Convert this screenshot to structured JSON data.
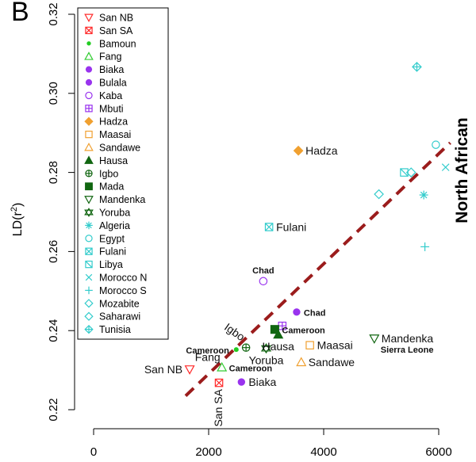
{
  "panel_label": "B",
  "chart_data": {
    "type": "scatter",
    "title": "",
    "xlabel": "",
    "ylabel": "LD(r²)",
    "ylabel_main": "LD(r",
    "ylabel_sup": "2",
    "ylabel_end": ")",
    "xlim": [
      0,
      6200
    ],
    "ylim": [
      0.22,
      0.32
    ],
    "xticks": [
      0,
      2000,
      4000,
      6000
    ],
    "yticks": [
      0.22,
      0.24,
      0.26,
      0.28,
      0.3,
      0.32
    ],
    "xtick_labels": [
      "0",
      "2000",
      "4000",
      "6000"
    ],
    "ytick_labels": [
      "0.22",
      "0.24",
      "0.26",
      "0.28",
      "0.30",
      "0.32"
    ],
    "grid": false,
    "legend_position": "top-left",
    "region_label": "North African",
    "trend_line": {
      "x": [
        1600,
        6200
      ],
      "y": [
        0.2235,
        0.2875
      ],
      "color": "#9b1c1c",
      "style": "dashed"
    },
    "series": [
      {
        "name": "San NB",
        "marker": "triangle-down-open",
        "color": "#ff2a2a",
        "points": [
          [
            1670,
            0.2302
          ]
        ],
        "labels": [
          {
            "text": "San NB",
            "bold": false,
            "pos": "left"
          }
        ]
      },
      {
        "name": "San SA",
        "marker": "square-x",
        "color": "#ff2a2a",
        "points": [
          [
            2180,
            0.2268
          ]
        ],
        "labels": [
          {
            "text": "San SA",
            "bold": false,
            "pos": "below-rotated"
          }
        ]
      },
      {
        "name": "Bamoun",
        "marker": "dot-small",
        "color": "#22cc22",
        "points": [
          [
            2480,
            0.2352
          ]
        ],
        "labels": [
          {
            "text": "Cameroon",
            "bold": true,
            "pos": "left"
          }
        ]
      },
      {
        "name": "Fang",
        "marker": "triangle-up-open",
        "color": "#33cc33",
        "points": [
          [
            2230,
            0.2307
          ]
        ],
        "labels": [
          {
            "text": "Fang",
            "bold": false,
            "pos": "above-left"
          },
          {
            "text": "Cameroon",
            "bold": true,
            "pos": "right"
          }
        ]
      },
      {
        "name": "Biaka",
        "marker": "dot",
        "color": "#9933ee",
        "points": [
          [
            2570,
            0.227
          ]
        ],
        "labels": [
          {
            "text": "Biaka",
            "bold": false,
            "pos": "right"
          }
        ]
      },
      {
        "name": "Bulala",
        "marker": "dot",
        "color": "#9933ee",
        "points": [
          [
            3530,
            0.2447
          ]
        ],
        "labels": [
          {
            "text": "Chad",
            "bold": true,
            "pos": "right"
          }
        ]
      },
      {
        "name": "Kaba",
        "marker": "circle-open",
        "color": "#9933ee",
        "points": [
          [
            2950,
            0.2525
          ]
        ],
        "labels": [
          {
            "text": "Chad",
            "bold": true,
            "pos": "above"
          }
        ]
      },
      {
        "name": "Mbuti",
        "marker": "square-plus",
        "color": "#9933ee",
        "points": [
          [
            3280,
            0.2412
          ]
        ],
        "labels": []
      },
      {
        "name": "Hadza",
        "marker": "diamond-filled",
        "color": "#f0a030",
        "points": [
          [
            3560,
            0.2855
          ]
        ],
        "labels": [
          {
            "text": "Hadza",
            "bold": false,
            "pos": "right"
          }
        ]
      },
      {
        "name": "Maasai",
        "marker": "square-open",
        "color": "#f0a030",
        "points": [
          [
            3760,
            0.2363
          ]
        ],
        "labels": [
          {
            "text": "Maasai",
            "bold": false,
            "pos": "right"
          }
        ]
      },
      {
        "name": "Sandawe",
        "marker": "triangle-up-open",
        "color": "#f0a030",
        "points": [
          [
            3610,
            0.232
          ]
        ],
        "labels": [
          {
            "text": "Sandawe",
            "bold": false,
            "pos": "right"
          }
        ]
      },
      {
        "name": "Hausa",
        "marker": "triangle-up-filled",
        "color": "#116611",
        "points": [
          [
            3210,
            0.239
          ]
        ],
        "labels": [
          {
            "text": "Hausa",
            "bold": false,
            "pos": "below"
          }
        ]
      },
      {
        "name": "Igbo",
        "marker": "circle-plus",
        "color": "#116611",
        "points": [
          [
            2650,
            0.2357
          ]
        ],
        "labels": [
          {
            "text": "Igbo",
            "bold": false,
            "pos": "above-left-rotated"
          }
        ]
      },
      {
        "name": "Mada",
        "marker": "square-filled",
        "color": "#116611",
        "points": [
          [
            3150,
            0.2403
          ]
        ],
        "labels": [
          {
            "text": "Cameroon",
            "bold": true,
            "pos": "right"
          }
        ]
      },
      {
        "name": "Mandenka",
        "marker": "triangle-down-open",
        "color": "#116611",
        "points": [
          [
            4880,
            0.238
          ]
        ],
        "labels": [
          {
            "text": "Mandenka",
            "bold": false,
            "pos": "right"
          },
          {
            "text": "Sierra Leone",
            "bold": true,
            "pos": "below-right"
          }
        ]
      },
      {
        "name": "Yoruba",
        "marker": "star-of-david",
        "color": "#116611",
        "points": [
          [
            3000,
            0.2355
          ]
        ],
        "labels": [
          {
            "text": "Yoruba",
            "bold": false,
            "pos": "below"
          }
        ]
      },
      {
        "name": "Algeria",
        "marker": "asterisk",
        "color": "#33cccc",
        "points": [
          [
            5740,
            0.2743
          ]
        ],
        "labels": []
      },
      {
        "name": "Egypt",
        "marker": "circle-open",
        "color": "#33cccc",
        "points": [
          [
            5950,
            0.287
          ]
        ],
        "labels": []
      },
      {
        "name": "Fulani",
        "marker": "square-x",
        "color": "#33cccc",
        "points": [
          [
            3050,
            0.2662
          ]
        ],
        "labels": [
          {
            "text": "Fulani",
            "bold": false,
            "pos": "right"
          }
        ]
      },
      {
        "name": "Libya",
        "marker": "square-x-open",
        "color": "#33cccc",
        "points": [
          [
            5400,
            0.28
          ]
        ],
        "labels": []
      },
      {
        "name": "Morocco N",
        "marker": "x",
        "color": "#33cccc",
        "points": [
          [
            6120,
            0.2813
          ]
        ],
        "labels": []
      },
      {
        "name": "Morocco S",
        "marker": "plus",
        "color": "#33cccc",
        "points": [
          [
            5760,
            0.2612
          ]
        ],
        "labels": []
      },
      {
        "name": "Mozabite",
        "marker": "diamond-open",
        "color": "#33cccc",
        "points": [
          [
            4960,
            0.2745
          ]
        ],
        "labels": []
      },
      {
        "name": "Saharawi",
        "marker": "diamond-open",
        "color": "#33cccc",
        "points": [
          [
            5520,
            0.28
          ]
        ],
        "labels": []
      },
      {
        "name": "Tunisia",
        "marker": "diamond-plus",
        "color": "#33cccc",
        "points": [
          [
            5620,
            0.3067
          ]
        ],
        "labels": []
      }
    ]
  }
}
